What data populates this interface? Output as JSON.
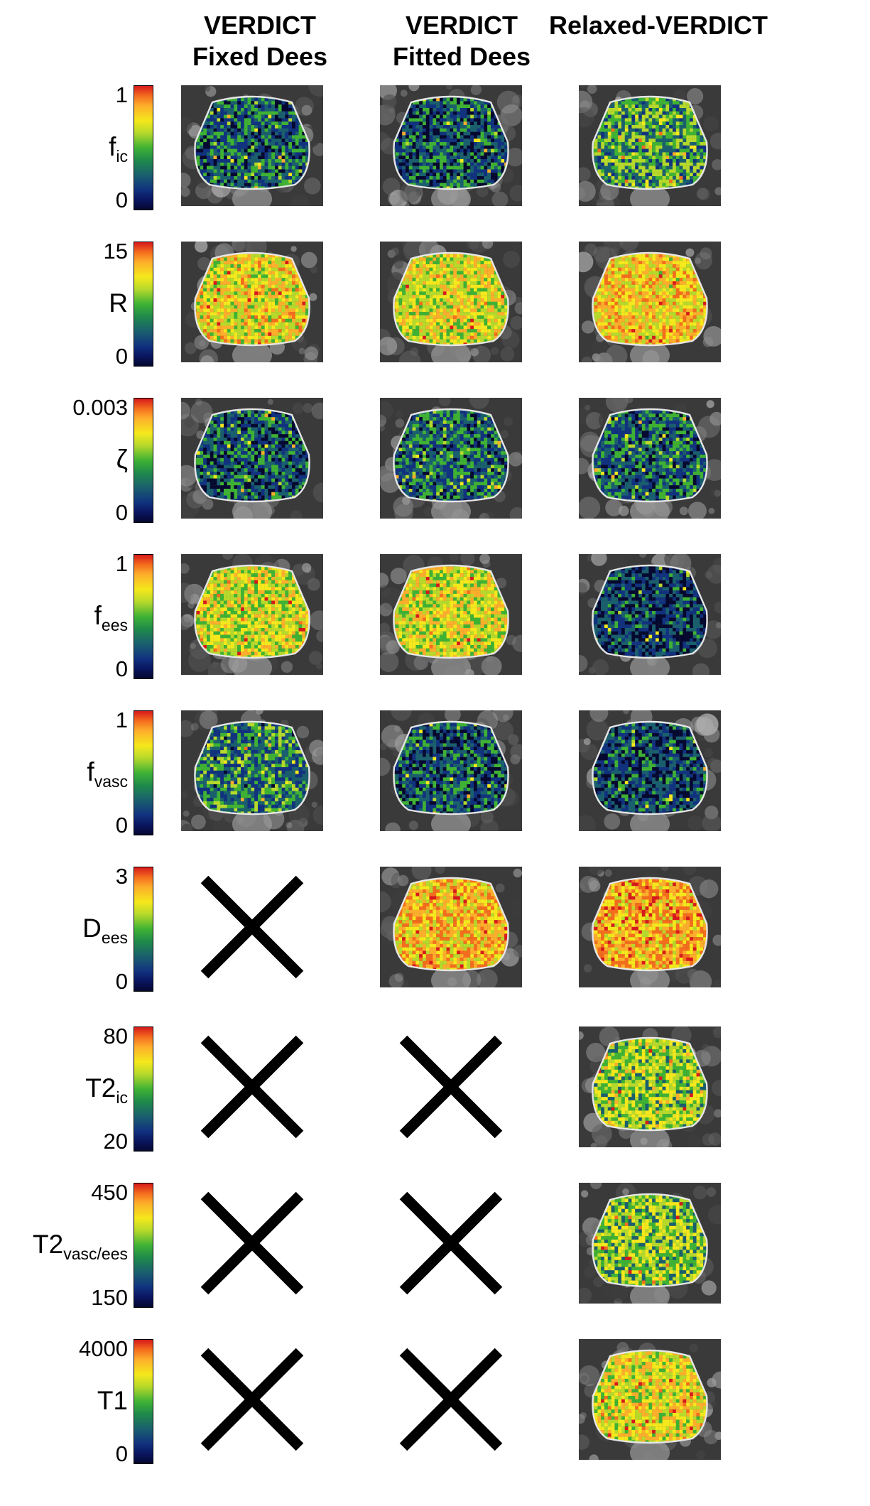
{
  "columns": [
    {
      "line1": "VERDICT",
      "line2": "Fixed Dees"
    },
    {
      "line1": "VERDICT",
      "line2": "Fitted Dees"
    },
    {
      "line1": "Relaxed-VERDICT",
      "line2": ""
    }
  ],
  "colormap": [
    "#05082f",
    "#11327f",
    "#1a5f6e",
    "#3fb234",
    "#b6d92b",
    "#f5e81c",
    "#fdae2b",
    "#f46d1d",
    "#d7191c"
  ],
  "rows": [
    {
      "symbol": "f",
      "sub": "ic",
      "max": "1",
      "min": "0",
      "panels": [
        0.22,
        0.18,
        0.35
      ]
    },
    {
      "symbol": "R",
      "sub": "",
      "max": "15",
      "min": "0",
      "panels": [
        0.62,
        0.58,
        0.66
      ]
    },
    {
      "symbol": "ζ",
      "sub": "",
      "max": "0.003",
      "min": "0",
      "panels": [
        0.18,
        0.24,
        0.22
      ]
    },
    {
      "symbol": "f",
      "sub": "ees",
      "max": "1",
      "min": "0",
      "panels": [
        0.55,
        0.57,
        0.12
      ]
    },
    {
      "symbol": "f",
      "sub": "vasc",
      "max": "1",
      "min": "0",
      "panels": [
        0.28,
        0.18,
        0.14
      ]
    },
    {
      "symbol": "D",
      "sub": "ees",
      "max": "3",
      "min": "0",
      "panels": [
        null,
        0.7,
        0.74
      ]
    },
    {
      "symbol": "T2",
      "sub": "ic",
      "max": "80",
      "min": "20",
      "panels": [
        null,
        null,
        0.48
      ]
    },
    {
      "symbol": "T2",
      "sub": "vasc/ees",
      "max": "450",
      "min": "150",
      "panels": [
        null,
        null,
        0.45
      ]
    },
    {
      "symbol": "T1",
      "sub": "",
      "max": "4000",
      "min": "0",
      "panels": [
        null,
        null,
        0.6
      ]
    }
  ]
}
